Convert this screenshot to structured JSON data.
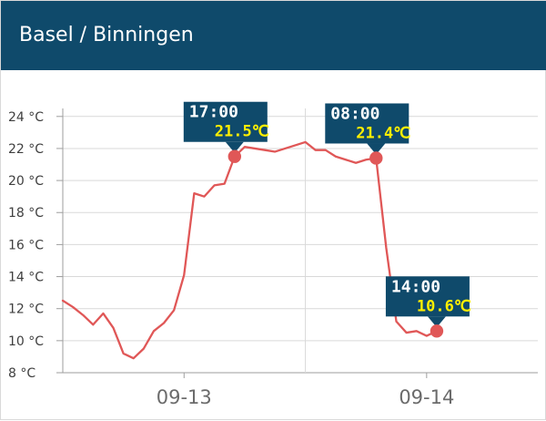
{
  "header": {
    "title": "Basel / Binningen"
  },
  "colors": {
    "header_background": "#0f4a6b",
    "line": "#e05757",
    "callout_background": "#0f4a6b",
    "callout_time_text": "#ffffff",
    "callout_value_text": "#ffef00",
    "grid": "#d9d9d9",
    "axis": "#9e9e9e"
  },
  "chart_data": {
    "type": "line",
    "x_ticks": [
      {
        "label": "09-13",
        "x": 12
      },
      {
        "label": "09-14",
        "x": 36
      }
    ],
    "y_ticks": [
      {
        "label": "24 °C",
        "value": 24
      },
      {
        "label": "22 °C",
        "value": 22
      },
      {
        "label": "20 °C",
        "value": 20
      },
      {
        "label": "18 °C",
        "value": 18
      },
      {
        "label": "16 °C",
        "value": 16
      },
      {
        "label": "14 °C",
        "value": 14
      },
      {
        "label": "12 °C",
        "value": 12
      },
      {
        "label": "10 °C",
        "value": 10
      },
      {
        "label": "8 °C",
        "value": 8
      }
    ],
    "xlim": [
      0,
      47
    ],
    "ylim": [
      8,
      24.5
    ],
    "vertical_line_x": 24,
    "series": [
      {
        "values": [
          {
            "x": 0,
            "y": 12.5
          },
          {
            "x": 1,
            "y": 12.1
          },
          {
            "x": 2,
            "y": 11.6
          },
          {
            "x": 3,
            "y": 11.0
          },
          {
            "x": 4,
            "y": 11.7
          },
          {
            "x": 5,
            "y": 10.8
          },
          {
            "x": 6,
            "y": 9.2
          },
          {
            "x": 7,
            "y": 8.9
          },
          {
            "x": 8,
            "y": 9.5
          },
          {
            "x": 9,
            "y": 10.6
          },
          {
            "x": 10,
            "y": 11.1
          },
          {
            "x": 11,
            "y": 11.9
          },
          {
            "x": 12,
            "y": 14.1
          },
          {
            "x": 13,
            "y": 19.2
          },
          {
            "x": 14,
            "y": 19.0
          },
          {
            "x": 15,
            "y": 19.7
          },
          {
            "x": 16,
            "y": 19.8
          },
          {
            "x": 17,
            "y": 21.5
          },
          {
            "x": 18,
            "y": 22.1
          },
          {
            "x": 19,
            "y": 22.0
          },
          {
            "x": 20,
            "y": 21.9
          },
          {
            "x": 21,
            "y": 21.8
          },
          {
            "x": 22,
            "y": 22.0
          },
          {
            "x": 23,
            "y": 22.2
          },
          {
            "x": 24,
            "y": 22.4
          },
          {
            "x": 25,
            "y": 21.9
          },
          {
            "x": 26,
            "y": 21.9
          },
          {
            "x": 27,
            "y": 21.5
          },
          {
            "x": 28,
            "y": 21.3
          },
          {
            "x": 29,
            "y": 21.1
          },
          {
            "x": 30,
            "y": 21.3
          },
          {
            "x": 31,
            "y": 21.4
          },
          {
            "x": 32,
            "y": 15.8
          },
          {
            "x": 33,
            "y": 11.2
          },
          {
            "x": 34,
            "y": 10.5
          },
          {
            "x": 35,
            "y": 10.6
          },
          {
            "x": 36,
            "y": 10.3
          },
          {
            "x": 37,
            "y": 10.6
          }
        ]
      }
    ],
    "callouts": [
      {
        "time": "17:00",
        "value": "21.5℃",
        "x": 17,
        "y": 21.5
      },
      {
        "time": "08:00",
        "value": "21.4℃",
        "x": 31,
        "y": 21.4
      },
      {
        "time": "14:00",
        "value": "10.6℃",
        "x": 37,
        "y": 10.6
      }
    ]
  }
}
